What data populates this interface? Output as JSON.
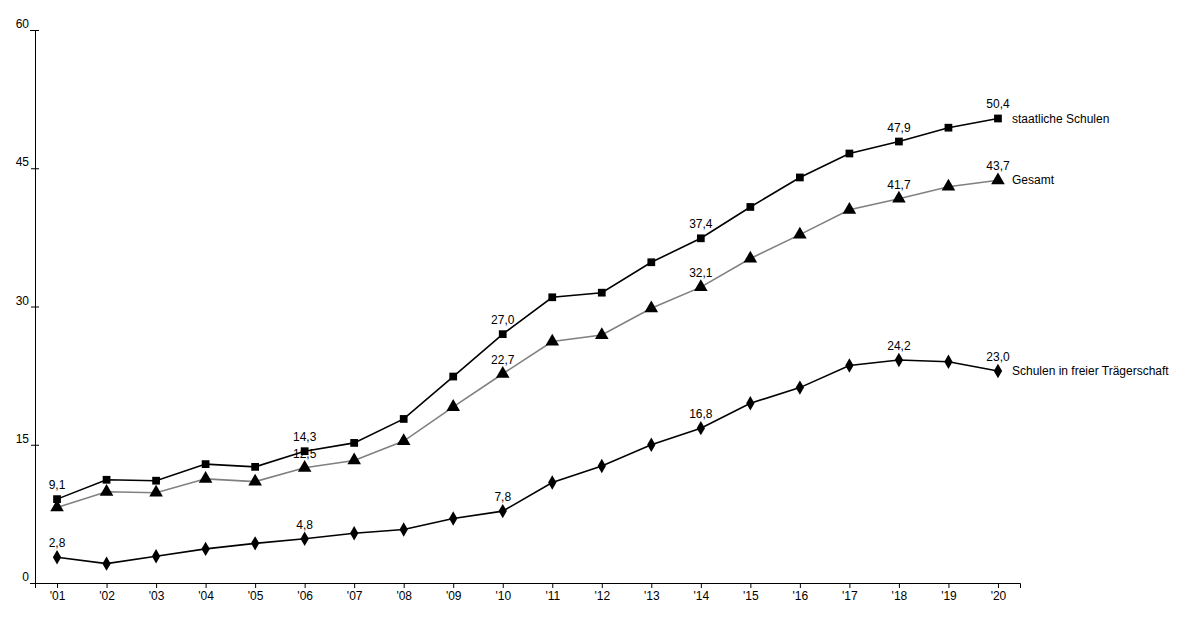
{
  "chart_data": {
    "type": "line",
    "categories": [
      "'01",
      "'02",
      "'03",
      "'04",
      "'05",
      "'06",
      "'07",
      "'08",
      "'09",
      "'10",
      "'11",
      "'12",
      "'13",
      "'14",
      "'15",
      "'16",
      "'17",
      "'18",
      "'19",
      "'20"
    ],
    "ylim": [
      0,
      60
    ],
    "yticks": [
      0,
      15,
      30,
      45,
      60
    ],
    "grid": false,
    "data_labels": true,
    "series": [
      {
        "name": "staatliche Schulen",
        "color": "#000000",
        "marker": "square",
        "line_style": "solid",
        "values": [
          9.1,
          11.2,
          11.1,
          12.9,
          12.6,
          14.3,
          15.2,
          17.8,
          22.4,
          27.0,
          31.0,
          31.5,
          34.8,
          37.4,
          40.8,
          44.0,
          46.6,
          47.9,
          49.4,
          50.4
        ],
        "value_labels": [
          "9,1",
          null,
          null,
          null,
          null,
          "14,3",
          null,
          null,
          null,
          "27,0",
          null,
          null,
          null,
          "37,4",
          null,
          null,
          null,
          "47,9",
          null,
          "50,4"
        ]
      },
      {
        "name": "Gesamt",
        "color": "#808080",
        "marker": "triangle",
        "line_style": "solid",
        "values": [
          8.2,
          9.9,
          9.8,
          11.3,
          11.0,
          12.5,
          13.3,
          15.4,
          19.1,
          22.7,
          26.2,
          26.9,
          29.8,
          32.1,
          35.2,
          37.8,
          40.5,
          41.7,
          43.0,
          43.7
        ],
        "value_labels": [
          null,
          null,
          null,
          null,
          null,
          "12,5",
          null,
          null,
          null,
          "22,7",
          null,
          null,
          null,
          "32,1",
          null,
          null,
          null,
          "41,7",
          null,
          "43,7"
        ]
      },
      {
        "name": "Schulen in freier Trägerschaft",
        "color": "#000000",
        "marker": "diamond",
        "line_style": "solid",
        "values": [
          2.8,
          2.1,
          2.9,
          3.7,
          4.3,
          4.8,
          5.4,
          5.8,
          7.0,
          7.8,
          10.9,
          12.7,
          15.0,
          16.8,
          19.5,
          21.2,
          23.6,
          24.2,
          24.0,
          23.0
        ],
        "value_labels": [
          "2,8",
          null,
          null,
          null,
          null,
          "4,8",
          null,
          null,
          null,
          "7,8",
          null,
          null,
          null,
          "16,8",
          null,
          null,
          null,
          "24,2",
          null,
          "23,0"
        ]
      }
    ]
  }
}
